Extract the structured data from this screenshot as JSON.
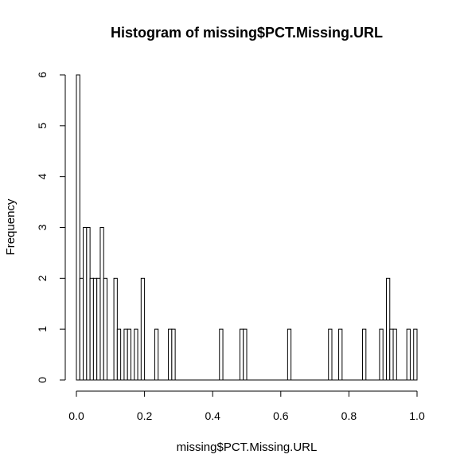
{
  "chart_data": {
    "type": "bar",
    "title": "Histogram of missing$PCT.Missing.URL",
    "xlabel": "missing$PCT.Missing.URL",
    "ylabel": "Frequency",
    "bin_width": 0.01,
    "xlim": [
      0,
      1
    ],
    "ylim": [
      0,
      6
    ],
    "x_ticks": [
      "0.0",
      "0.2",
      "0.4",
      "0.6",
      "0.8",
      "1.0"
    ],
    "y_ticks": [
      "0",
      "1",
      "2",
      "3",
      "4",
      "5",
      "6"
    ],
    "counts": [
      6,
      2,
      3,
      3,
      2,
      2,
      2,
      3,
      2,
      0,
      0,
      2,
      1,
      0,
      1,
      1,
      0,
      1,
      0,
      2,
      0,
      0,
      0,
      1,
      0,
      0,
      0,
      1,
      1,
      0,
      0,
      0,
      0,
      0,
      0,
      0,
      0,
      0,
      0,
      0,
      0,
      0,
      1,
      0,
      0,
      0,
      0,
      0,
      1,
      1,
      0,
      0,
      0,
      0,
      0,
      0,
      0,
      0,
      0,
      0,
      0,
      0,
      1,
      0,
      0,
      0,
      0,
      0,
      0,
      0,
      0,
      0,
      0,
      0,
      1,
      0,
      0,
      1,
      0,
      0,
      0,
      0,
      0,
      0,
      1,
      0,
      0,
      0,
      0,
      1,
      0,
      2,
      1,
      1,
      0,
      0,
      0,
      1,
      0,
      1
    ],
    "grid": false,
    "legend": "none"
  }
}
